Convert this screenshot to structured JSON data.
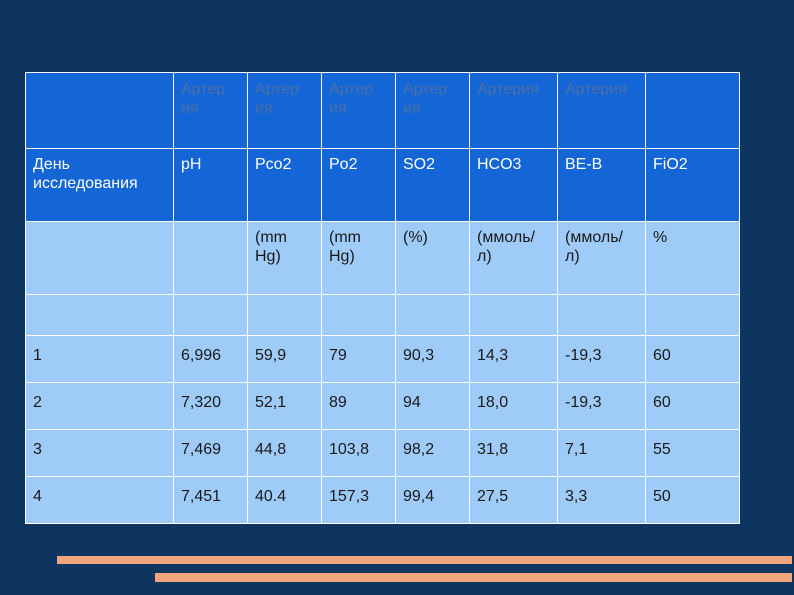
{
  "table": {
    "top_header": [
      "",
      "Артер ия",
      "Артер ия",
      "Артер ия",
      "Артер ия",
      "Артерия",
      "Артерия",
      ""
    ],
    "header": [
      "День исследования",
      "pH",
      "Pco2",
      "Po2",
      "SO2",
      "HCO3",
      "BE-B",
      "FiO2"
    ],
    "units": [
      "",
      "",
      "(mm Hg)",
      "(mm Hg)",
      "(%)",
      "(ммоль/ л)",
      "(ммоль/ л)",
      "%"
    ],
    "rows": [
      [
        "1",
        "6,996",
        "59,9",
        "79",
        "90,3",
        "14,3",
        "-19,3",
        "60"
      ],
      [
        "2",
        "7,320",
        "52,1",
        "89",
        "94",
        "18,0",
        "-19,3",
        "60"
      ],
      [
        "3",
        "7,469",
        "44,8",
        "103,8",
        "98,2",
        "31,8",
        "7,1",
        "55"
      ],
      [
        "4",
        "7,451",
        "40.4",
        "157,3",
        "99,4",
        "27,5",
        "3,3",
        "50"
      ]
    ]
  },
  "colors": {
    "background": "#0e3560",
    "header_fill": "#1465d6",
    "body_fill": "#9ecbf7",
    "accent_bars": "#f2a47c"
  }
}
